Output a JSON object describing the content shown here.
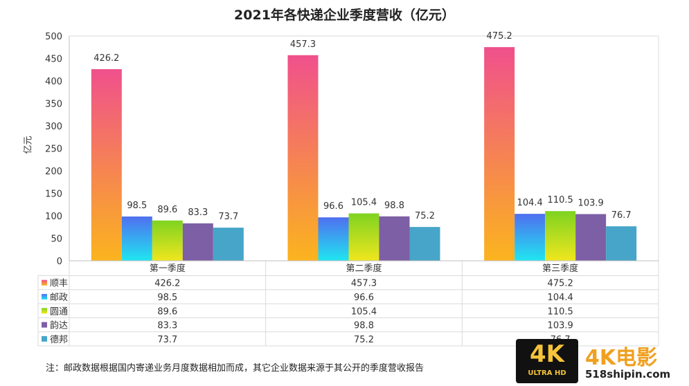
{
  "chart_data": {
    "type": "bar",
    "title": "2021年各快递企业季度营收（亿元）",
    "ylabel": "亿元",
    "ylim": [
      0,
      500
    ],
    "yticks": [
      0,
      50,
      100,
      150,
      200,
      250,
      300,
      350,
      400,
      450,
      500
    ],
    "categories": [
      "第一季度",
      "第二季度",
      "第三季度"
    ],
    "series": [
      {
        "name": "顺丰",
        "values": [
          426.2,
          457.3,
          475.2
        ],
        "color_top": "#f0508c",
        "color_bottom": "#fbb41e"
      },
      {
        "name": "邮政",
        "values": [
          98.5,
          96.6,
          104.4
        ],
        "color_top": "#4f6ff0",
        "color_bottom": "#20e6f0"
      },
      {
        "name": "圆通",
        "values": [
          89.6,
          105.4,
          110.5
        ],
        "color_top": "#7ed321",
        "color_bottom": "#f0e61e"
      },
      {
        "name": "韵达",
        "values": [
          83.3,
          98.8,
          103.9
        ],
        "color_top": "#7d5fa5",
        "color_bottom": "#7d5fa5"
      },
      {
        "name": "德邦",
        "values": [
          73.7,
          75.2,
          76.7
        ],
        "color_top": "#46a5c8",
        "color_bottom": "#46a5c8"
      }
    ],
    "grid": false,
    "legend": "table-below"
  },
  "note": "注：邮政数据根据国内寄递业务月度数据相加而成，其它企业数据来源于其公开的季度营收报告",
  "watermark": {
    "badge": "4K",
    "badge_sub": "ULTRA HD",
    "brand": "4K电影",
    "site": "518shipin.com"
  }
}
